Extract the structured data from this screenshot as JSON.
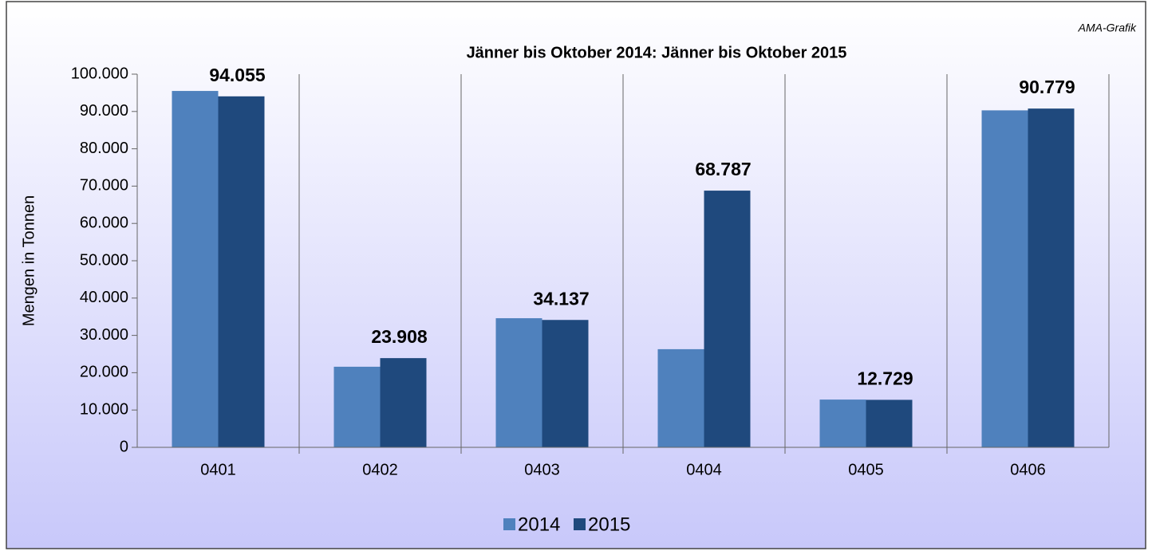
{
  "chart_data": {
    "type": "bar",
    "title": "Jänner bis Oktober 2014: Jänner bis Oktober 2015",
    "annotation": "AMA-Grafik",
    "y_label": "Mengen in Tonnen",
    "categories": [
      "0401",
      "0402",
      "0403",
      "0404",
      "0405",
      "0406"
    ],
    "series": [
      {
        "name": "2014",
        "color": "#4f81bd",
        "values": [
          95500,
          21600,
          34600,
          26300,
          12800,
          90300
        ]
      },
      {
        "name": "2015",
        "color": "#1f497d",
        "values": [
          94055,
          23908,
          34137,
          68787,
          12729,
          90779
        ],
        "value_labels": [
          "94.055",
          "23.908",
          "34.137",
          "68.787",
          "12.729",
          "90.779"
        ]
      }
    ],
    "ylim": [
      0,
      100000
    ],
    "yticks": [
      0,
      {
        "value": 10000,
        "label": "10.000"
      },
      {
        "value": 20000,
        "label": "20.000"
      },
      {
        "value": 30000,
        "label": "30.000"
      },
      {
        "value": 40000,
        "label": "40.000"
      },
      {
        "value": 50000,
        "label": "50.000"
      },
      {
        "value": 60000,
        "label": "60.000"
      },
      {
        "value": 70000,
        "label": "70.000"
      },
      {
        "value": 80000,
        "label": "80.000"
      },
      {
        "value": 90000,
        "label": "90.000"
      },
      {
        "value": 100000,
        "label": "100.000"
      }
    ],
    "legend": "bottom"
  }
}
